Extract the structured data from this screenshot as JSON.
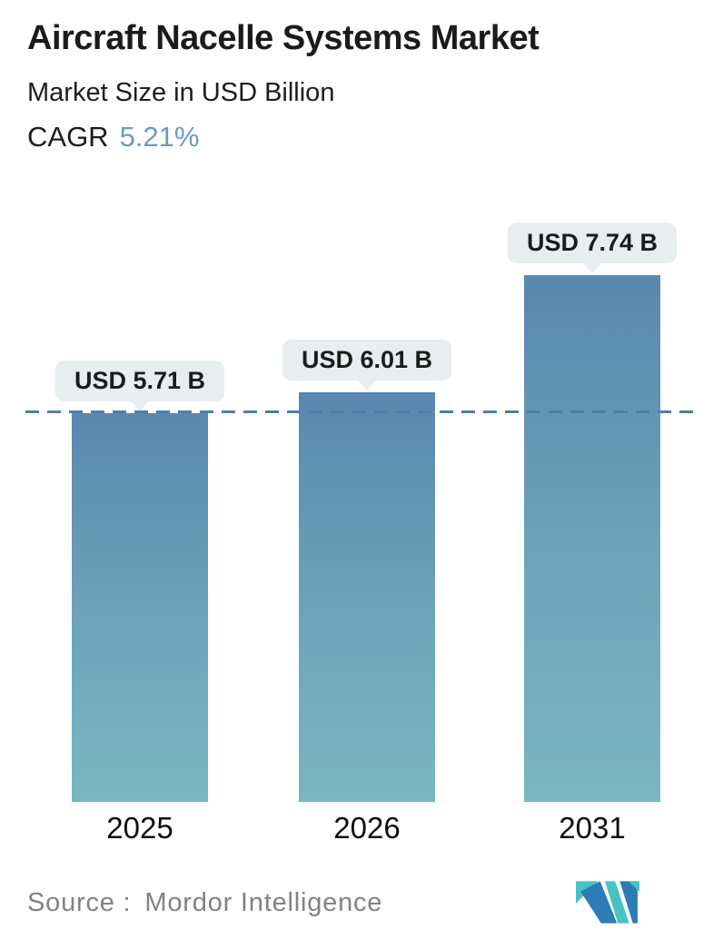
{
  "header": {
    "title": "Aircraft Nacelle Systems Market",
    "subtitle": "Market Size in USD Billion",
    "cagr_label": "CAGR",
    "cagr_value": "5.21%"
  },
  "chart_data": {
    "type": "bar",
    "categories": [
      "2025",
      "2026",
      "2031"
    ],
    "values": [
      5.71,
      6.01,
      7.74
    ],
    "value_labels": [
      "USD 5.71 B",
      "USD 6.01 B",
      "USD 7.74 B"
    ],
    "title": "Aircraft Nacelle Systems Market",
    "subtitle": "Market Size in USD Billion",
    "cagr": "5.21%",
    "unit": "USD Billion",
    "ylim": [
      0,
      8.5
    ],
    "baseline_value": 5.71,
    "baseline_style": "horizontal dashed line at 2025 value",
    "grid": false,
    "legend": "none",
    "colors": {
      "bar_gradient_top": "#5987ae",
      "bar_gradient_mid": "#6da5b9",
      "bar_gradient_bottom": "#7ab6c2",
      "dashed_line": "#4d7fa9",
      "label_pill_bg": "#e8edef",
      "label_text": "#1c1c1c",
      "cagr_accent": "#6b9ac4"
    }
  },
  "footer": {
    "source_label": "Source :",
    "source_value": "Mordor Intelligence",
    "logo": "mordor-intelligence-logo",
    "logo_teal": "#46c4bf",
    "logo_blue": "#2c7cb6"
  }
}
